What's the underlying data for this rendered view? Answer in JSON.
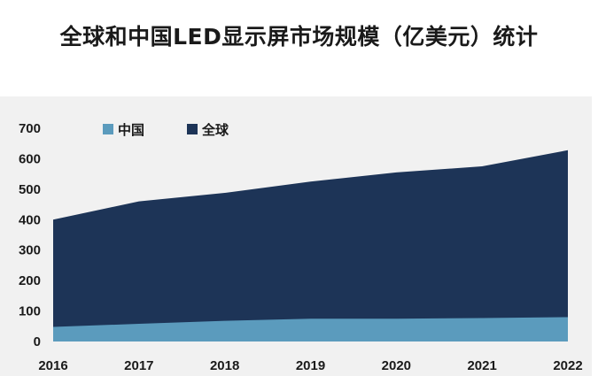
{
  "chart_data": {
    "type": "area",
    "title": "全球和中国LED显示屏市场规模（亿美元）统计",
    "xlabel": "",
    "ylabel": "",
    "categories": [
      "2016",
      "2017",
      "2018",
      "2019",
      "2020",
      "2021",
      "2022"
    ],
    "ylim": [
      0,
      700
    ],
    "yticks": [
      0,
      100,
      200,
      300,
      400,
      500,
      600,
      700
    ],
    "grid": false,
    "legend_position": "top-left",
    "series": [
      {
        "name": "中国",
        "values": [
          48,
          58,
          68,
          75,
          75,
          77,
          80
        ],
        "color": "#5b9bbd"
      },
      {
        "name": "全球",
        "values": [
          400,
          460,
          488,
          525,
          555,
          575,
          628
        ],
        "color": "#1d3457"
      }
    ]
  }
}
